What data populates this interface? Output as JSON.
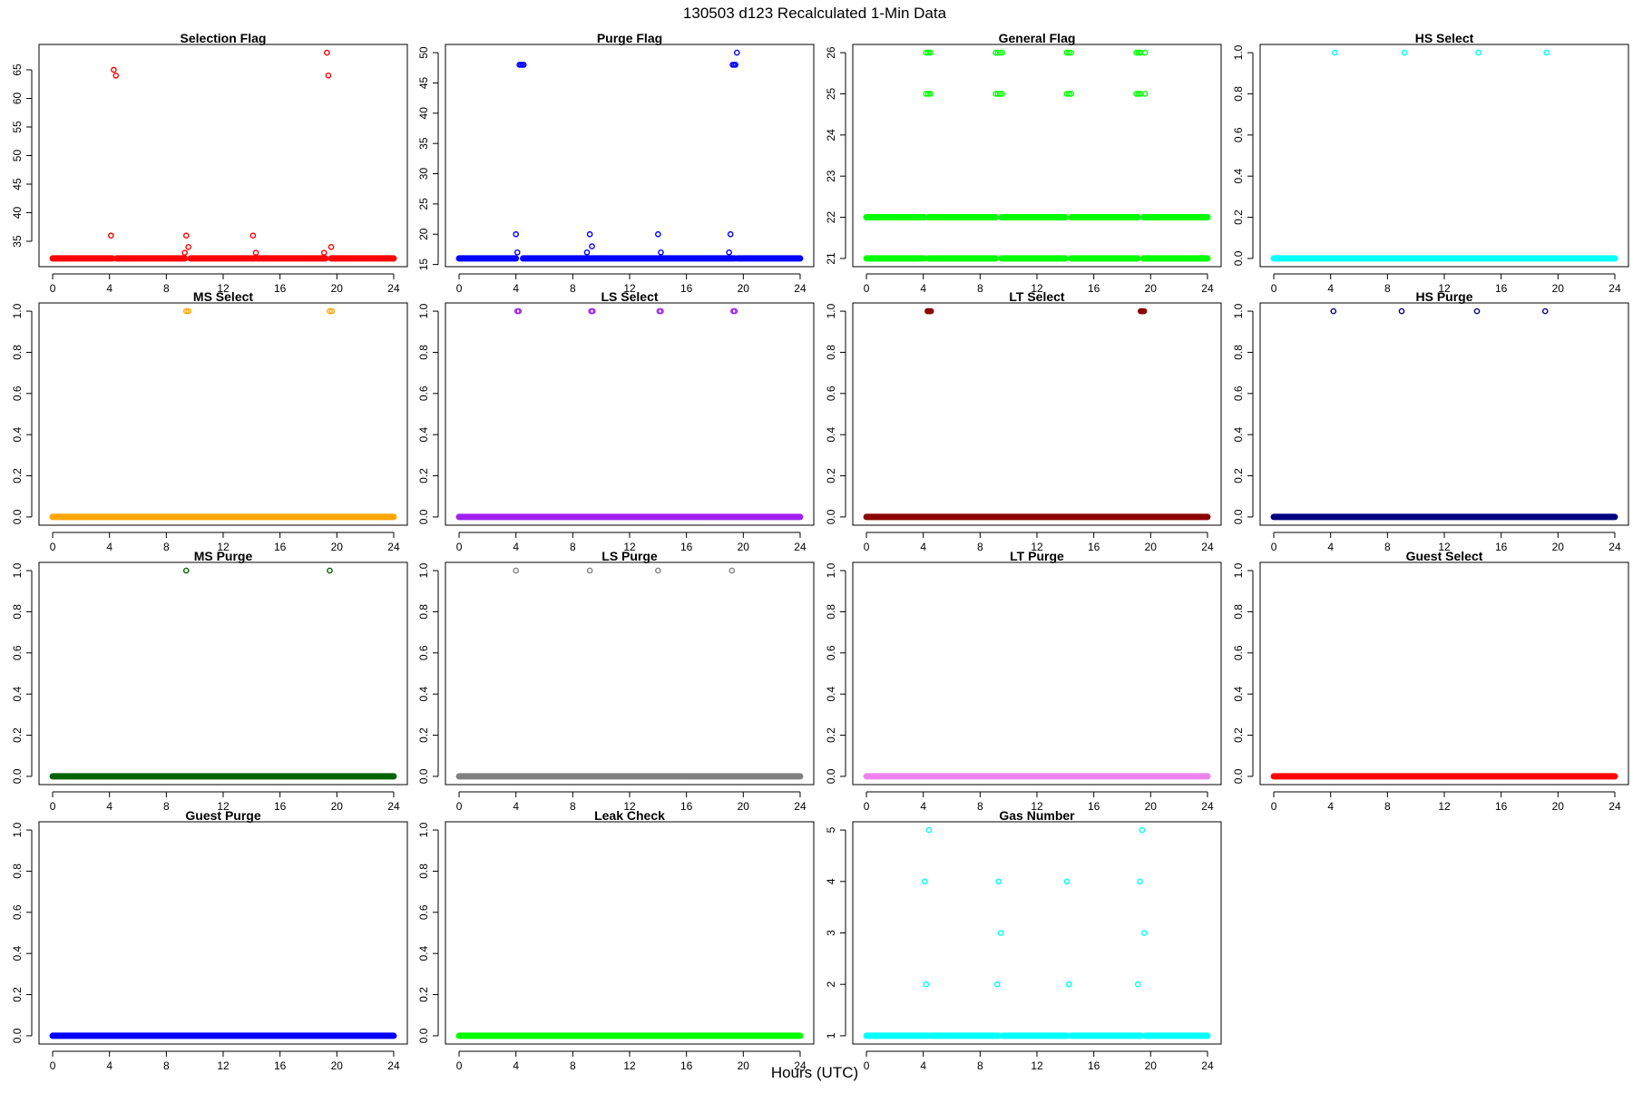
{
  "page": {
    "title": "130503   d123   Recalculated 1-Min Data",
    "xlabel": "Hours (UTC)"
  },
  "chart_data": [
    {
      "type": "scatter",
      "title": "Selection Flag",
      "color": "#ff0000",
      "xlim": [
        0,
        24
      ],
      "xticks": [
        0,
        4,
        8,
        12,
        16,
        20,
        24
      ],
      "ylim": [
        32,
        68
      ],
      "yticks": [
        35,
        40,
        45,
        50,
        55,
        60,
        65
      ],
      "ytick_labels": [
        "35",
        "40",
        "45",
        "50",
        "55",
        "60",
        "65"
      ],
      "baseline": {
        "value": 32,
        "segments": [
          [
            0,
            4.2
          ],
          [
            4.5,
            9.3
          ],
          [
            9.7,
            14.2
          ],
          [
            14.4,
            19.2
          ],
          [
            19.6,
            24
          ]
        ]
      },
      "points": [
        [
          4.1,
          36
        ],
        [
          4.3,
          65
        ],
        [
          4.45,
          64
        ],
        [
          9.3,
          33
        ],
        [
          9.4,
          36
        ],
        [
          9.55,
          34
        ],
        [
          14.1,
          36
        ],
        [
          14.3,
          33
        ],
        [
          19.1,
          33
        ],
        [
          19.3,
          68
        ],
        [
          19.4,
          64
        ],
        [
          19.6,
          34
        ]
      ]
    },
    {
      "type": "scatter",
      "title": "Purge Flag",
      "color": "#0000ff",
      "xlim": [
        0,
        24
      ],
      "xticks": [
        0,
        4,
        8,
        12,
        16,
        20,
        24
      ],
      "ylim": [
        16,
        50
      ],
      "yticks": [
        15,
        20,
        25,
        30,
        35,
        40,
        45,
        50
      ],
      "ytick_labels": [
        "15",
        "20",
        "25",
        "30",
        "35",
        "40",
        "45",
        "50"
      ],
      "baseline": {
        "value": 16,
        "segments": [
          [
            0,
            4.0
          ],
          [
            4.5,
            19.4
          ],
          [
            19.6,
            24
          ]
        ]
      },
      "points": [
        [
          4.0,
          20
        ],
        [
          4.1,
          17
        ],
        [
          4.25,
          48
        ],
        [
          4.35,
          48
        ],
        [
          4.45,
          48
        ],
        [
          4.55,
          48
        ],
        [
          9.0,
          17
        ],
        [
          9.2,
          20
        ],
        [
          9.35,
          18
        ],
        [
          14.0,
          20
        ],
        [
          14.2,
          17
        ],
        [
          19.0,
          17
        ],
        [
          19.1,
          20
        ],
        [
          19.25,
          48
        ],
        [
          19.35,
          48
        ],
        [
          19.45,
          48
        ],
        [
          19.55,
          50
        ]
      ]
    },
    {
      "type": "scatter",
      "title": "General Flag",
      "color": "#00ff00",
      "xlim": [
        0,
        24
      ],
      "xticks": [
        0,
        4,
        8,
        12,
        16,
        20,
        24
      ],
      "ylim": [
        21,
        26
      ],
      "yticks": [
        21,
        22,
        23,
        24,
        25,
        26
      ],
      "ytick_labels": [
        "21",
        "22",
        "23",
        "24",
        "25",
        "26"
      ],
      "baseline": {
        "values": [
          21,
          22
        ],
        "segments": [
          [
            0,
            4.1
          ],
          [
            4.4,
            9.1
          ],
          [
            9.5,
            14.0
          ],
          [
            14.4,
            19.1
          ],
          [
            19.5,
            24
          ]
        ]
      },
      "points": [
        [
          4.2,
          26
        ],
        [
          4.35,
          26
        ],
        [
          4.5,
          26
        ],
        [
          4.2,
          25
        ],
        [
          4.35,
          25
        ],
        [
          4.5,
          25
        ],
        [
          9.1,
          26
        ],
        [
          9.25,
          26
        ],
        [
          9.4,
          26
        ],
        [
          9.55,
          26
        ],
        [
          9.1,
          25
        ],
        [
          9.25,
          25
        ],
        [
          9.4,
          25
        ],
        [
          9.55,
          25
        ],
        [
          14.1,
          26
        ],
        [
          14.25,
          26
        ],
        [
          14.4,
          26
        ],
        [
          14.1,
          25
        ],
        [
          14.25,
          25
        ],
        [
          14.4,
          25
        ],
        [
          19.0,
          26
        ],
        [
          19.15,
          26
        ],
        [
          19.3,
          26
        ],
        [
          19.6,
          26
        ],
        [
          19.0,
          25
        ],
        [
          19.15,
          25
        ],
        [
          19.3,
          25
        ],
        [
          19.6,
          25
        ]
      ]
    },
    {
      "type": "scatter",
      "title": "HS Select",
      "color": "#00ffff",
      "xlim": [
        0,
        24
      ],
      "xticks": [
        0,
        4,
        8,
        12,
        16,
        20,
        24
      ],
      "ylim": [
        0,
        1
      ],
      "yticks": [
        0,
        0.2,
        0.4,
        0.6,
        0.8,
        1.0
      ],
      "ytick_labels": [
        "0.0",
        "0.2",
        "0.4",
        "0.6",
        "0.8",
        "1.0"
      ],
      "baseline": {
        "value": 0,
        "segments": [
          [
            0,
            24
          ]
        ]
      },
      "points": [
        [
          4.3,
          1
        ],
        [
          9.2,
          1
        ],
        [
          14.4,
          1
        ],
        [
          19.2,
          1
        ]
      ]
    },
    {
      "type": "scatter",
      "title": "MS Select",
      "color": "#ffa500",
      "xlim": [
        0,
        24
      ],
      "xticks": [
        0,
        4,
        8,
        12,
        16,
        20,
        24
      ],
      "ylim": [
        0,
        1
      ],
      "yticks": [
        0,
        0.2,
        0.4,
        0.6,
        0.8,
        1.0
      ],
      "ytick_labels": [
        "0.0",
        "0.2",
        "0.4",
        "0.6",
        "0.8",
        "1.0"
      ],
      "baseline": {
        "value": 0,
        "segments": [
          [
            0,
            24
          ]
        ]
      },
      "points": [
        [
          9.4,
          1
        ],
        [
          9.55,
          1
        ],
        [
          19.5,
          1
        ],
        [
          19.65,
          1
        ]
      ]
    },
    {
      "type": "scatter",
      "title": "LS Select",
      "color": "#a020f0",
      "xlim": [
        0,
        24
      ],
      "xticks": [
        0,
        4,
        8,
        12,
        16,
        20,
        24
      ],
      "ylim": [
        0,
        1
      ],
      "yticks": [
        0,
        0.2,
        0.4,
        0.6,
        0.8,
        1.0
      ],
      "ytick_labels": [
        "0.0",
        "0.2",
        "0.4",
        "0.6",
        "0.8",
        "1.0"
      ],
      "baseline": {
        "value": 0,
        "segments": [
          [
            0,
            24
          ]
        ]
      },
      "points": [
        [
          4.1,
          1
        ],
        [
          4.2,
          1
        ],
        [
          9.3,
          1
        ],
        [
          9.4,
          1
        ],
        [
          14.1,
          1
        ],
        [
          14.2,
          1
        ],
        [
          19.3,
          1
        ],
        [
          19.4,
          1
        ]
      ]
    },
    {
      "type": "scatter",
      "title": "LT Select",
      "color": "#8b0000",
      "xlim": [
        0,
        24
      ],
      "xticks": [
        0,
        4,
        8,
        12,
        16,
        20,
        24
      ],
      "ylim": [
        0,
        1
      ],
      "yticks": [
        0,
        0.2,
        0.4,
        0.6,
        0.8,
        1.0
      ],
      "ytick_labels": [
        "0.0",
        "0.2",
        "0.4",
        "0.6",
        "0.8",
        "1.0"
      ],
      "baseline": {
        "value": 0,
        "segments": [
          [
            0,
            24
          ]
        ]
      },
      "points": [
        [
          4.3,
          1
        ],
        [
          4.38,
          1
        ],
        [
          4.46,
          1
        ],
        [
          4.54,
          1
        ],
        [
          19.3,
          1
        ],
        [
          19.38,
          1
        ],
        [
          19.46,
          1
        ],
        [
          19.54,
          1
        ]
      ]
    },
    {
      "type": "scatter",
      "title": "HS Purge",
      "color": "#000080",
      "xlim": [
        0,
        24
      ],
      "xticks": [
        0,
        4,
        8,
        12,
        16,
        20,
        24
      ],
      "ylim": [
        0,
        1
      ],
      "yticks": [
        0,
        0.2,
        0.4,
        0.6,
        0.8,
        1.0
      ],
      "ytick_labels": [
        "0.0",
        "0.2",
        "0.4",
        "0.6",
        "0.8",
        "1.0"
      ],
      "baseline": {
        "value": 0,
        "segments": [
          [
            0,
            24
          ]
        ]
      },
      "points": [
        [
          4.2,
          1
        ],
        [
          9.0,
          1
        ],
        [
          14.3,
          1
        ],
        [
          19.1,
          1
        ]
      ]
    },
    {
      "type": "scatter",
      "title": "MS Purge",
      "color": "#006400",
      "xlim": [
        0,
        24
      ],
      "xticks": [
        0,
        4,
        8,
        12,
        16,
        20,
        24
      ],
      "ylim": [
        0,
        1
      ],
      "yticks": [
        0,
        0.2,
        0.4,
        0.6,
        0.8,
        1.0
      ],
      "ytick_labels": [
        "0.0",
        "0.2",
        "0.4",
        "0.6",
        "0.8",
        "1.0"
      ],
      "baseline": {
        "value": 0,
        "segments": [
          [
            0,
            24
          ]
        ]
      },
      "points": [
        [
          9.4,
          1
        ],
        [
          19.5,
          1
        ]
      ]
    },
    {
      "type": "scatter",
      "title": "LS Purge",
      "color": "#808080",
      "xlim": [
        0,
        24
      ],
      "xticks": [
        0,
        4,
        8,
        12,
        16,
        20,
        24
      ],
      "ylim": [
        0,
        1
      ],
      "yticks": [
        0,
        0.2,
        0.4,
        0.6,
        0.8,
        1.0
      ],
      "ytick_labels": [
        "0.0",
        "0.2",
        "0.4",
        "0.6",
        "0.8",
        "1.0"
      ],
      "baseline": {
        "value": 0,
        "segments": [
          [
            0,
            24
          ]
        ]
      },
      "points": [
        [
          4.0,
          1
        ],
        [
          9.2,
          1
        ],
        [
          14.0,
          1
        ],
        [
          19.2,
          1
        ]
      ]
    },
    {
      "type": "scatter",
      "title": "LT Purge",
      "color": "#ee82ee",
      "xlim": [
        0,
        24
      ],
      "xticks": [
        0,
        4,
        8,
        12,
        16,
        20,
        24
      ],
      "ylim": [
        0,
        1
      ],
      "yticks": [
        0,
        0.2,
        0.4,
        0.6,
        0.8,
        1.0
      ],
      "ytick_labels": [
        "0.0",
        "0.2",
        "0.4",
        "0.6",
        "0.8",
        "1.0"
      ],
      "baseline": {
        "value": 0,
        "segments": [
          [
            0,
            24
          ]
        ]
      },
      "points": []
    },
    {
      "type": "scatter",
      "title": "Guest Select",
      "color": "#ff0000",
      "xlim": [
        0,
        24
      ],
      "xticks": [
        0,
        4,
        8,
        12,
        16,
        20,
        24
      ],
      "ylim": [
        0,
        1
      ],
      "yticks": [
        0,
        0.2,
        0.4,
        0.6,
        0.8,
        1.0
      ],
      "ytick_labels": [
        "0.0",
        "0.2",
        "0.4",
        "0.6",
        "0.8",
        "1.0"
      ],
      "baseline": {
        "value": 0,
        "segments": [
          [
            0,
            24
          ]
        ]
      },
      "points": []
    },
    {
      "type": "scatter",
      "title": "Guest Purge",
      "color": "#0000ff",
      "xlim": [
        0,
        24
      ],
      "xticks": [
        0,
        4,
        8,
        12,
        16,
        20,
        24
      ],
      "ylim": [
        0,
        1
      ],
      "yticks": [
        0,
        0.2,
        0.4,
        0.6,
        0.8,
        1.0
      ],
      "ytick_labels": [
        "0.0",
        "0.2",
        "0.4",
        "0.6",
        "0.8",
        "1.0"
      ],
      "baseline": {
        "value": 0,
        "segments": [
          [
            0,
            24
          ]
        ]
      },
      "points": []
    },
    {
      "type": "scatter",
      "title": "Leak Check",
      "color": "#00ff00",
      "xlim": [
        0,
        24
      ],
      "xticks": [
        0,
        4,
        8,
        12,
        16,
        20,
        24
      ],
      "ylim": [
        0,
        1
      ],
      "yticks": [
        0,
        0.2,
        0.4,
        0.6,
        0.8,
        1.0
      ],
      "ytick_labels": [
        "0.0",
        "0.2",
        "0.4",
        "0.6",
        "0.8",
        "1.0"
      ],
      "baseline": {
        "value": 0,
        "segments": [
          [
            0,
            24
          ]
        ]
      },
      "points": []
    },
    {
      "type": "scatter",
      "title": "Gas Number",
      "color": "#00ffff",
      "xlim": [
        0,
        24
      ],
      "xticks": [
        0,
        4,
        8,
        12,
        16,
        20,
        24
      ],
      "ylim": [
        1,
        5
      ],
      "yticks": [
        1,
        2,
        3,
        4,
        5
      ],
      "ytick_labels": [
        "1",
        "2",
        "3",
        "4",
        "5"
      ],
      "baseline": {
        "value": 1,
        "segments": [
          [
            0,
            4.3
          ],
          [
            4.5,
            9.3
          ],
          [
            9.6,
            14.1
          ],
          [
            14.4,
            19.3
          ],
          [
            19.6,
            24
          ]
        ]
      },
      "points": [
        [
          4.1,
          4
        ],
        [
          4.2,
          2
        ],
        [
          4.4,
          5
        ],
        [
          9.2,
          2
        ],
        [
          9.3,
          4
        ],
        [
          9.45,
          3
        ],
        [
          14.1,
          4
        ],
        [
          14.25,
          2
        ],
        [
          19.1,
          2
        ],
        [
          19.25,
          4
        ],
        [
          19.4,
          5
        ],
        [
          19.55,
          3
        ]
      ]
    }
  ]
}
